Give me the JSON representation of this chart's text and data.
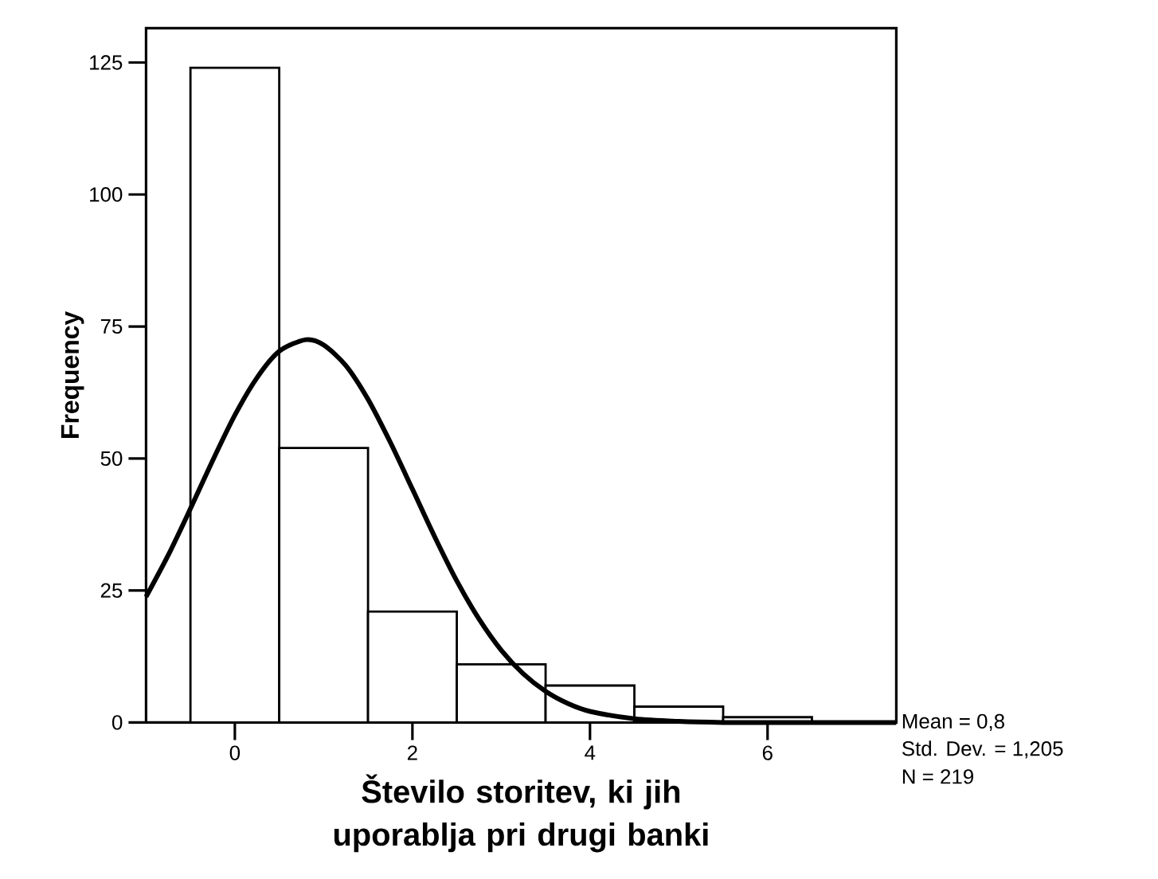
{
  "chart_data": {
    "type": "histogram",
    "xlabel": "Število storitev, ki jih uporablja pri drugi banki",
    "ylabel": "Frequency",
    "xlim": [
      -1,
      7.45
    ],
    "ylim": [
      0,
      131.5
    ],
    "xticks": [
      0,
      2,
      4,
      6
    ],
    "yticks": [
      0,
      25,
      50,
      75,
      100,
      125
    ],
    "grid": false,
    "series": [
      {
        "color": "#ffffff",
        "bins": [
          -0.5,
          0.5,
          1.5,
          2.5,
          3.5,
          4.5,
          5.5,
          6.5
        ],
        "values": [
          124,
          52,
          21,
          11,
          7,
          3,
          1
        ]
      },
      {
        "type": "line",
        "color": "#000000",
        "x": [
          -1,
          -0.75,
          -0.5,
          -0.25,
          0,
          0.25,
          0.5,
          0.8,
          1.0,
          1.25,
          1.5,
          1.75,
          2.0,
          2.25,
          2.5,
          2.75,
          3.0,
          3.25,
          3.5,
          3.75,
          4.0,
          4.5,
          5.0,
          5.5,
          6.0,
          7.45
        ],
        "values": [
          23.8,
          31.7,
          40.5,
          49.6,
          58.2,
          65.3,
          70.3,
          72.5,
          71.5,
          67.6,
          61.2,
          53.1,
          44.2,
          35.2,
          26.8,
          19.6,
          13.7,
          9.2,
          5.9,
          3.6,
          2.1,
          0.7,
          0.2,
          0,
          0,
          0
        ]
      }
    ],
    "annotations": [
      "Mean = 0,8",
      "Std. Dev. = 1,205",
      "N = 219"
    ]
  }
}
